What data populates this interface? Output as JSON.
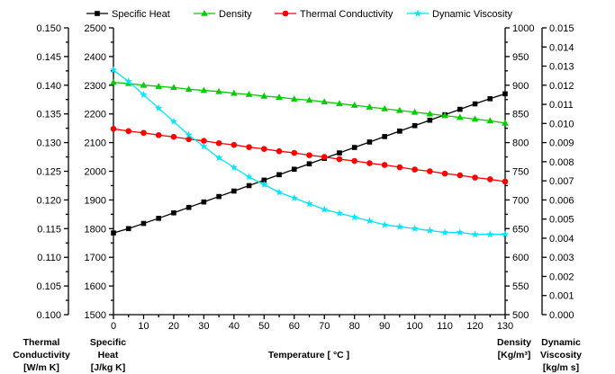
{
  "chart_data": {
    "type": "line",
    "x_axis": {
      "label": "Temperature [ °C ]",
      "range": [
        0,
        130
      ],
      "ticks": [
        0,
        10,
        20,
        30,
        40,
        50,
        60,
        70,
        80,
        90,
        100,
        110,
        120,
        130
      ]
    },
    "y_axes": [
      {
        "id": "k",
        "title": [
          "Thermal",
          "Conductivity",
          "[W/m K]"
        ],
        "range": [
          0.1,
          0.15
        ],
        "tick_labels": [
          "0.100",
          "0.105",
          "0.110",
          "0.115",
          "0.120",
          "0.125",
          "0.130",
          "0.135",
          "0.140",
          "0.145",
          "0.150"
        ]
      },
      {
        "id": "cp",
        "title": [
          "Specific",
          "Heat",
          "[J/kg K]"
        ],
        "range": [
          1500,
          2500
        ],
        "tick_labels": [
          "1500",
          "1600",
          "1700",
          "1800",
          "1900",
          "2000",
          "2100",
          "2200",
          "2300",
          "2400",
          "2500"
        ]
      },
      {
        "id": "rho",
        "title": [
          "Density",
          "[Kg/m³]"
        ],
        "range": [
          500,
          1000
        ],
        "tick_labels": [
          "500",
          "550",
          "600",
          "650",
          "700",
          "750",
          "800",
          "850",
          "900",
          "950",
          "1000"
        ]
      },
      {
        "id": "mu",
        "title": [
          "Dynamic",
          "Viscosity",
          "[kg/m s]"
        ],
        "range": [
          0.0,
          0.015
        ],
        "tick_labels": [
          "0.000",
          "0.001",
          "0.002",
          "0.003",
          "0.004",
          "0.005",
          "0.006",
          "0.007",
          "0.008",
          "0.009",
          "0.010",
          "0.011",
          "0.012",
          "0.013",
          "0.014",
          "0.015"
        ]
      }
    ],
    "x": [
      0,
      5,
      10,
      15,
      20,
      25,
      30,
      35,
      40,
      45,
      50,
      55,
      60,
      65,
      70,
      75,
      80,
      85,
      90,
      95,
      100,
      105,
      110,
      115,
      120,
      125,
      130
    ],
    "series": [
      {
        "name": "Specific Heat",
        "axis": "cp",
        "color": "#000000",
        "marker": "square",
        "values": [
          1785,
          1800,
          1818,
          1836,
          1855,
          1874,
          1893,
          1912,
          1931,
          1950,
          1969,
          1988,
          2007,
          2026,
          2045,
          2064,
          2083,
          2102,
          2121,
          2140,
          2159,
          2178,
          2197,
          2216,
          2235,
          2253,
          2270
        ]
      },
      {
        "name": "Density",
        "axis": "rho",
        "color": "#00cc00",
        "marker": "triangle",
        "values": [
          905,
          903,
          900,
          898,
          896,
          893,
          891,
          889,
          886,
          884,
          881,
          879,
          876,
          874,
          871,
          868,
          865,
          862,
          859,
          856,
          853,
          850,
          847,
          844,
          841,
          838,
          834
        ]
      },
      {
        "name": "Thermal Conductivity",
        "axis": "k",
        "color": "#ff0000",
        "marker": "circle",
        "values": [
          0.1324,
          0.132,
          0.1317,
          0.1313,
          0.131,
          0.1306,
          0.1303,
          0.1299,
          0.1296,
          0.1292,
          0.1289,
          0.1285,
          0.1282,
          0.1278,
          0.1275,
          0.1271,
          0.1268,
          0.1264,
          0.1261,
          0.1257,
          0.1253,
          0.125,
          0.1246,
          0.1243,
          0.1239,
          0.1236,
          0.1232
        ]
      },
      {
        "name": "Dynamic Viscosity",
        "axis": "mu",
        "color": "#00e5ff",
        "marker": "star",
        "values": [
          0.0128,
          0.0122,
          0.0115,
          0.0108,
          0.0101,
          0.0094,
          0.0088,
          0.0082,
          0.0077,
          0.0072,
          0.0068,
          0.0064,
          0.0061,
          0.0058,
          0.0055,
          0.0053,
          0.0051,
          0.0049,
          0.0047,
          0.0046,
          0.0045,
          0.0044,
          0.0043,
          0.0043,
          0.0042,
          0.0042,
          0.0042
        ]
      }
    ],
    "legend_position": "top",
    "grid": false
  }
}
